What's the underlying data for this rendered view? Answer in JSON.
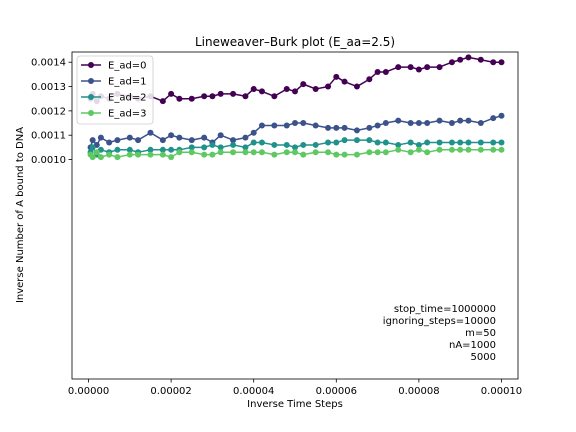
{
  "chart_data": {
    "type": "line",
    "title": "Lineweaver–Burk plot (E_aa=2.5)",
    "xlabel": "Inverse Time Steps",
    "ylabel": "Inverse Number of A bound to DNA",
    "xlim": [
      -4e-06,
      0.000104
    ],
    "ylim": [
      9.8e-05,
      0.001442
    ],
    "x_ticks": [
      0,
      2e-05,
      4e-05,
      6e-05,
      8e-05,
      0.0001
    ],
    "x_tick_labels": [
      "0.00000",
      "0.00002",
      "0.00004",
      "0.00006",
      "0.00008",
      "0.00010"
    ],
    "y_ticks": [
      0.001,
      0.0011,
      0.0012,
      0.0013,
      0.0014
    ],
    "y_tick_labels": [
      "0.0010",
      "0.0011",
      "0.0012",
      "0.0013",
      "0.0014"
    ],
    "grid": false,
    "legend_position": "top-left",
    "annotation_lines": [
      "stop_time=1000000",
      "ignoring_steps=10000",
      "m=50",
      "nA=1000",
      "5000"
    ],
    "x": [
      5e-07,
      1e-06,
      2e-06,
      3e-06,
      5e-06,
      7e-06,
      1e-05,
      1.2e-05,
      1.5e-05,
      1.8e-05,
      2e-05,
      2.2e-05,
      2.5e-05,
      2.8e-05,
      3e-05,
      3.2e-05,
      3.5e-05,
      3.8e-05,
      4e-05,
      4.2e-05,
      4.5e-05,
      4.8e-05,
      5e-05,
      5.2e-05,
      5.5e-05,
      5.8e-05,
      6e-05,
      6.2e-05,
      6.5e-05,
      6.8e-05,
      7e-05,
      7.2e-05,
      7.5e-05,
      7.8e-05,
      8e-05,
      8.2e-05,
      8.5e-05,
      8.8e-05,
      9e-05,
      9.2e-05,
      9.5e-05,
      9.8e-05,
      0.0001
    ],
    "series": [
      {
        "name": "E_ad=0",
        "color": "#440154",
        "values": [
          0.00125,
          0.00127,
          0.00124,
          0.00126,
          0.00125,
          0.00127,
          0.00126,
          0.00125,
          0.00126,
          0.00124,
          0.00127,
          0.00125,
          0.00125,
          0.00126,
          0.00126,
          0.00127,
          0.00127,
          0.00126,
          0.00129,
          0.00128,
          0.00126,
          0.00129,
          0.00128,
          0.00131,
          0.00129,
          0.0013,
          0.00134,
          0.00132,
          0.0013,
          0.00133,
          0.00136,
          0.00136,
          0.00138,
          0.00138,
          0.00137,
          0.00138,
          0.00138,
          0.0014,
          0.00141,
          0.00142,
          0.00141,
          0.0014,
          0.0014
        ]
      },
      {
        "name": "E_ad=1",
        "color": "#3b528b",
        "values": [
          0.00105,
          0.00108,
          0.00106,
          0.00109,
          0.00107,
          0.00108,
          0.00109,
          0.00108,
          0.00111,
          0.00108,
          0.0011,
          0.00109,
          0.00108,
          0.00109,
          0.00107,
          0.0011,
          0.00108,
          0.00109,
          0.00111,
          0.00114,
          0.00114,
          0.00114,
          0.00115,
          0.00115,
          0.00114,
          0.00113,
          0.00113,
          0.00113,
          0.00112,
          0.00113,
          0.00114,
          0.00115,
          0.00116,
          0.00115,
          0.00115,
          0.00115,
          0.00116,
          0.00115,
          0.00116,
          0.00116,
          0.00115,
          0.00117,
          0.00118
        ]
      },
      {
        "name": "E_ad=2",
        "color": "#21918c",
        "values": [
          0.00103,
          0.00105,
          0.00102,
          0.00104,
          0.00103,
          0.00104,
          0.00104,
          0.00103,
          0.00104,
          0.00104,
          0.00104,
          0.00104,
          0.00105,
          0.00105,
          0.00106,
          0.00105,
          0.00106,
          0.00105,
          0.00107,
          0.00107,
          0.00106,
          0.00106,
          0.00105,
          0.00106,
          0.00106,
          0.00107,
          0.00107,
          0.00108,
          0.00108,
          0.00108,
          0.00107,
          0.00107,
          0.00106,
          0.00107,
          0.00106,
          0.00107,
          0.00107,
          0.00107,
          0.00107,
          0.00107,
          0.00107,
          0.00107,
          0.00107
        ]
      },
      {
        "name": "E_ad=3",
        "color": "#5ec962",
        "values": [
          0.00102,
          0.00101,
          0.00103,
          0.00101,
          0.00102,
          0.00101,
          0.00102,
          0.00102,
          0.00102,
          0.00102,
          0.00101,
          0.00103,
          0.00103,
          0.00102,
          0.00102,
          0.00103,
          0.00103,
          0.00103,
          0.00103,
          0.00103,
          0.00102,
          0.00103,
          0.00103,
          0.00102,
          0.00103,
          0.00103,
          0.00102,
          0.00102,
          0.00102,
          0.00103,
          0.00103,
          0.00103,
          0.00104,
          0.00103,
          0.00104,
          0.00103,
          0.00104,
          0.00104,
          0.00104,
          0.00104,
          0.00104,
          0.00104,
          0.00104
        ]
      }
    ]
  }
}
